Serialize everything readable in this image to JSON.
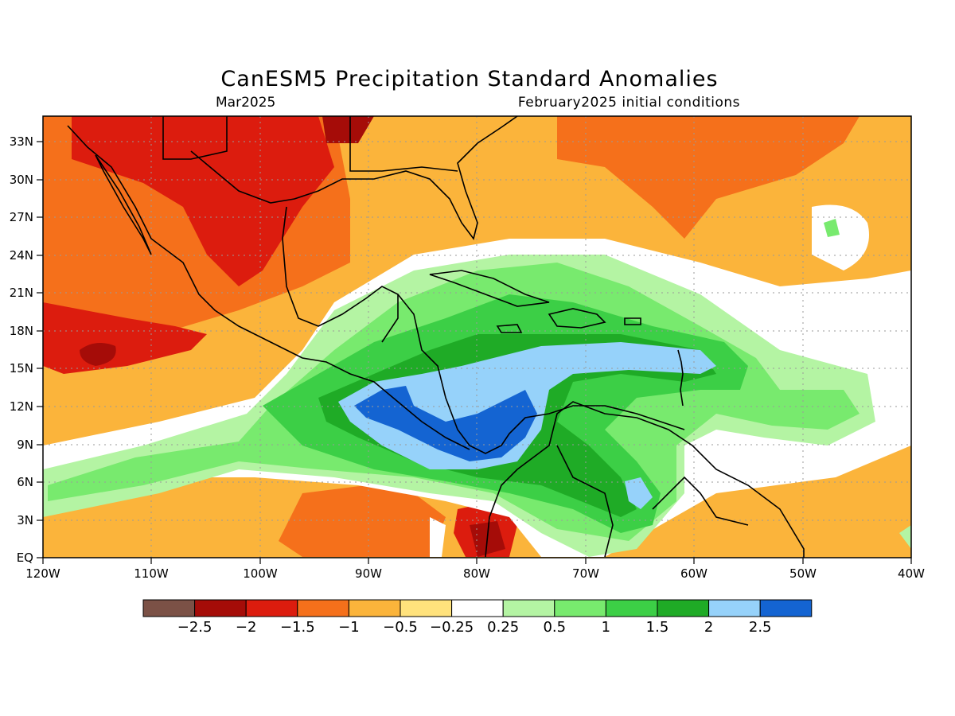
{
  "header": {
    "title": "CanESM5 Precipitation Standard Anomalies",
    "valid_month": "Mar2025",
    "init": "February2025 initial conditions"
  },
  "map": {
    "lon_labels": [
      "120W",
      "110W",
      "100W",
      "90W",
      "80W",
      "70W",
      "60W",
      "50W",
      "40W"
    ],
    "lat_labels": [
      "EQ",
      "3N",
      "6N",
      "9N",
      "12N",
      "15N",
      "18N",
      "21N",
      "24N",
      "27N",
      "30N",
      "33N"
    ],
    "lon_range": [
      -120,
      -40
    ],
    "lat_range": [
      0,
      35
    ],
    "gridlines": true
  },
  "colorbar": {
    "labels": [
      "-2.5",
      "-2",
      "-1.5",
      "-1",
      "-0.5",
      "-0.25",
      "0.25",
      "0.5",
      "1",
      "1.5",
      "2",
      "2.5"
    ],
    "colors": [
      "#7b5146",
      "#a50c08",
      "#dc1c0e",
      "#f5701b",
      "#fbb43b",
      "#ffe27c",
      "#ffffff",
      "#b4f4a3",
      "#78ea6e",
      "#3ccf46",
      "#1fab26",
      "#96d2fa",
      "#1464d2"
    ]
  }
}
